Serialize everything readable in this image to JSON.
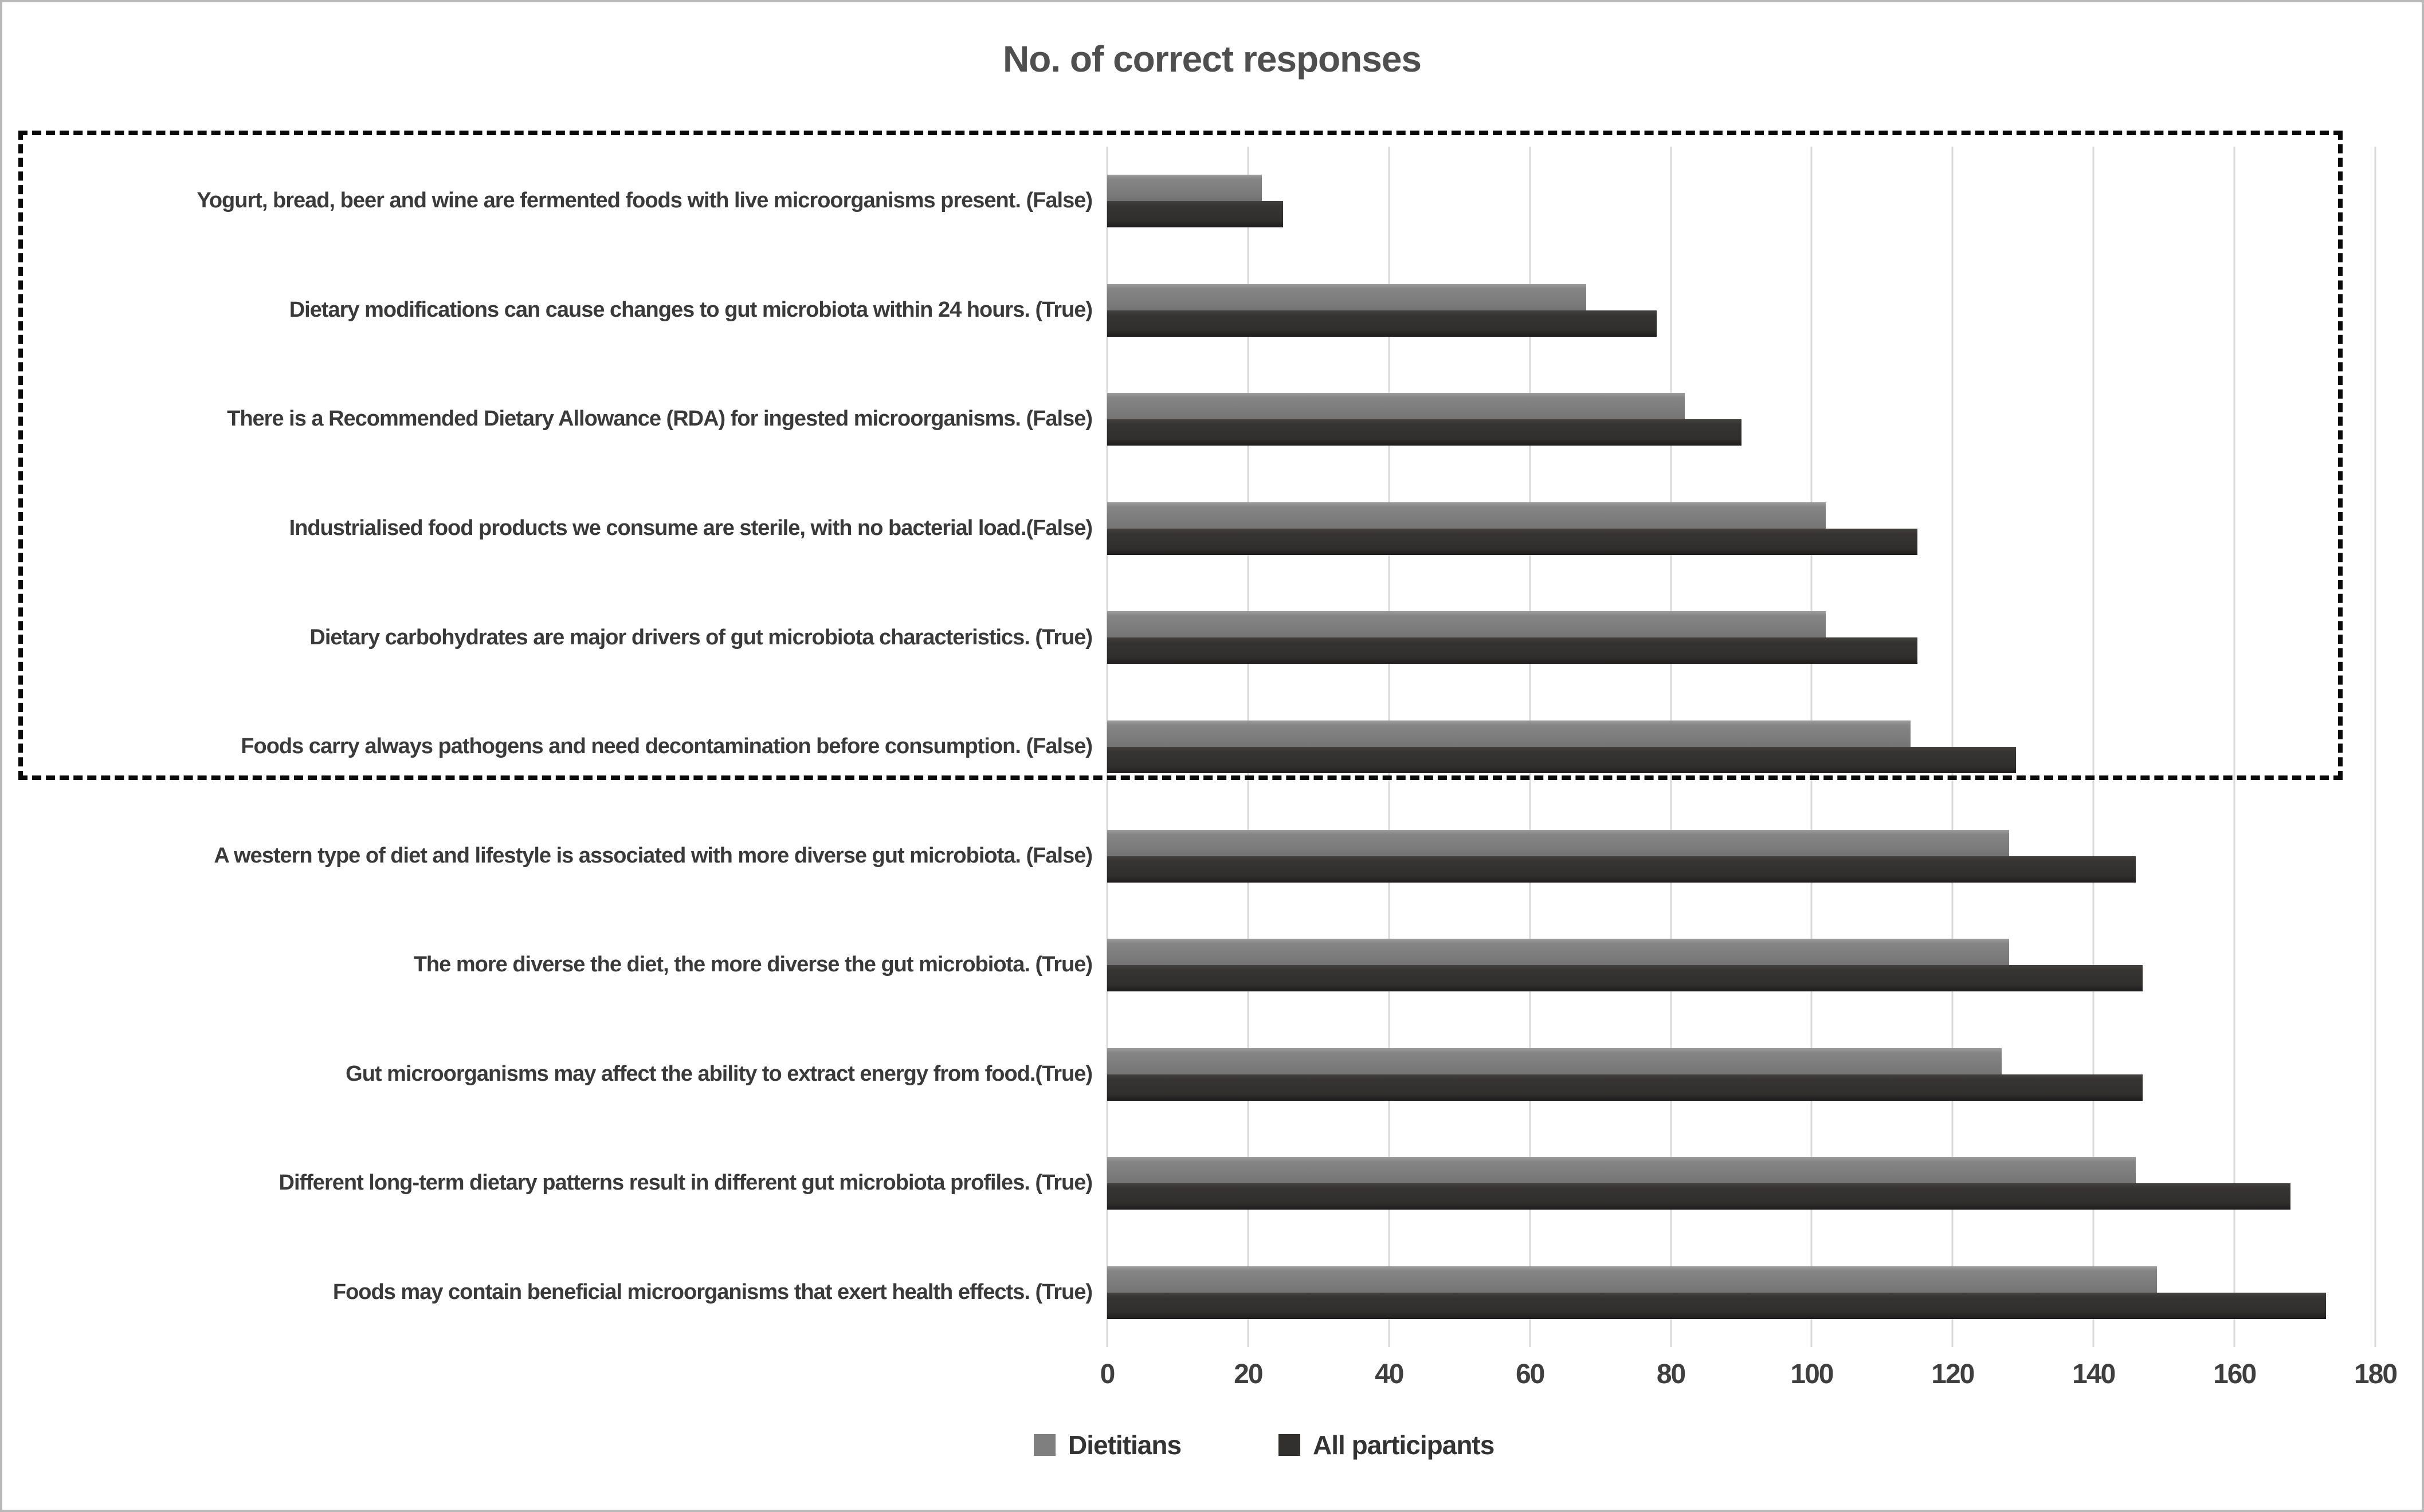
{
  "title": "No. of correct responses",
  "legend": {
    "items": [
      {
        "label": "Dietitians",
        "color": "#7f7f7f"
      },
      {
        "label": "All participants",
        "color": "#322f2f"
      }
    ],
    "position": "bottom"
  },
  "colors": {
    "dietitians_bar": "#7f7f7f",
    "all_participants_bar": "#322f2f",
    "gridline": "#d9d9d9",
    "title_text": "#4f4f4f",
    "label_text": "#3a3a3a",
    "dashed_box": "#0a0a0a",
    "outer_border": "#b9b9b9"
  },
  "dashed_box": {
    "encloses_first_n_rows": 6
  },
  "chart_data": {
    "type": "bar",
    "orientation": "horizontal",
    "title": "No. of correct responses",
    "categories": [
      "Yogurt, bread, beer and wine are fermented foods with live microorganisms present. (False)",
      "Dietary modifications can cause changes to gut microbiota within 24 hours. (True)",
      "There is a Recommended Dietary Allowance (RDA) for ingested microorganisms. (False)",
      "Industrialised food products we consume are sterile, with no bacterial load.(False)",
      "Dietary carbohydrates are major drivers of gut microbiota characteristics. (True)",
      "Foods carry always pathogens and need decontamination before consumption. (False)",
      "A western type of diet and lifestyle is associated with more diverse gut microbiota. (False)",
      "The more diverse the diet, the more diverse the gut microbiota. (True)",
      "Gut microorganisms may affect the ability to extract energy from food.(True)",
      "Different long-term dietary patterns result in different gut microbiota profiles. (True)",
      "Foods may contain beneficial microorganisms that exert health effects. (True)"
    ],
    "series": [
      {
        "name": "Dietitians",
        "color": "#7f7f7f",
        "values": [
          22,
          68,
          82,
          102,
          102,
          114,
          128,
          128,
          127,
          146,
          149
        ]
      },
      {
        "name": "All participants",
        "color": "#322f2f",
        "values": [
          25,
          78,
          90,
          115,
          115,
          129,
          146,
          147,
          147,
          168,
          173
        ]
      }
    ],
    "xlabel": "",
    "ylabel": "",
    "xlim": [
      0,
      180
    ],
    "xticks": [
      0,
      20,
      40,
      60,
      80,
      100,
      120,
      140,
      160,
      180
    ],
    "grid": "vertical",
    "legend_position": "bottom"
  }
}
